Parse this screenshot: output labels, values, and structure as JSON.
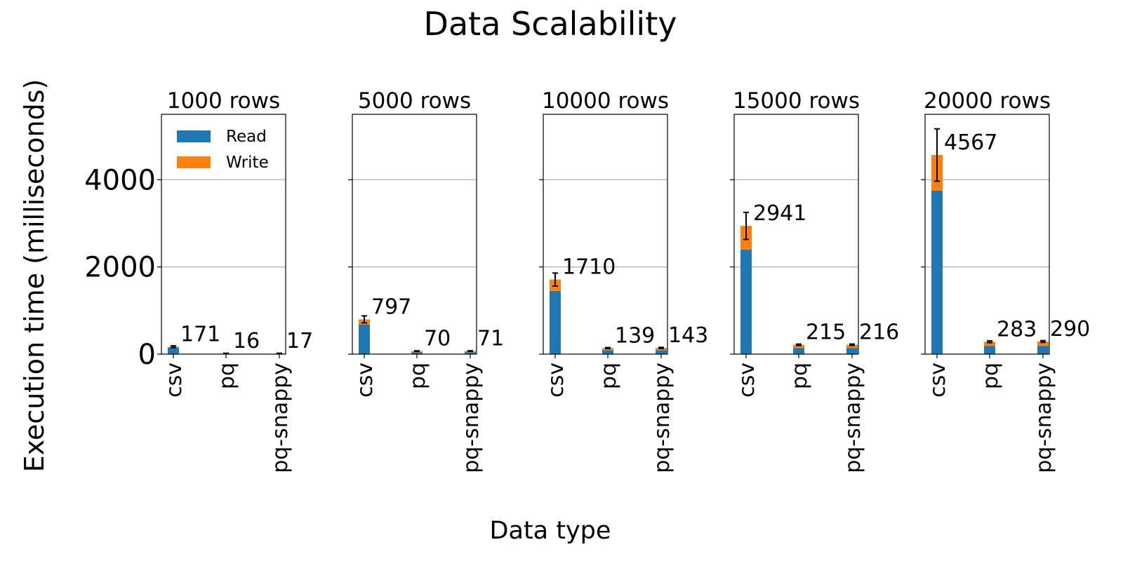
{
  "chart_data": {
    "type": "bar",
    "stacked": true,
    "title": "Data Scalability",
    "xlabel": "Data type",
    "ylabel": "Execution time (milliseconds)",
    "ylim": [
      0,
      5500
    ],
    "yticks": [
      0,
      2000,
      4000
    ],
    "y_grid": true,
    "legend": {
      "placement": "top-left",
      "entries": [
        "Read",
        "Write"
      ]
    },
    "colors": {
      "Read": "#1f77b4",
      "Write": "#ff7f0e"
    },
    "categories": [
      "csv",
      "pq",
      "pq-snappy"
    ],
    "panels": [
      {
        "title": "1000 rows",
        "series": [
          {
            "name": "Read",
            "values": [
              150,
              10,
              10
            ]
          },
          {
            "name": "Write",
            "values": [
              21,
              6,
              7
            ]
          }
        ],
        "totals": [
          171,
          16,
          17
        ],
        "labels": [
          "171",
          "16",
          "17"
        ],
        "error": [
          20,
          4,
          4
        ]
      },
      {
        "title": "5000 rows",
        "series": [
          {
            "name": "Read",
            "values": [
              680,
              45,
              46
            ]
          },
          {
            "name": "Write",
            "values": [
              117,
              25,
              25
            ]
          }
        ],
        "totals": [
          797,
          70,
          71
        ],
        "labels": [
          "797",
          "70",
          "71"
        ],
        "error": [
          80,
          6,
          6
        ]
      },
      {
        "title": "10000 rows",
        "series": [
          {
            "name": "Read",
            "values": [
              1450,
              90,
              92
            ]
          },
          {
            "name": "Write",
            "values": [
              260,
              49,
              51
            ]
          }
        ],
        "totals": [
          1710,
          139,
          143
        ],
        "labels": [
          "1710",
          "139",
          "143"
        ],
        "error": [
          150,
          12,
          12
        ]
      },
      {
        "title": "15000 rows",
        "series": [
          {
            "name": "Read",
            "values": [
              2400,
              140,
              142
            ]
          },
          {
            "name": "Write",
            "values": [
              541,
              75,
              74
            ]
          }
        ],
        "totals": [
          2941,
          215,
          216
        ],
        "labels": [
          "2941",
          "215",
          "216"
        ],
        "error": [
          310,
          15,
          15
        ]
      },
      {
        "title": "20000 rows",
        "series": [
          {
            "name": "Read",
            "values": [
              3750,
              185,
              190
            ]
          },
          {
            "name": "Write",
            "values": [
              817,
              98,
              100
            ]
          }
        ],
        "totals": [
          4567,
          283,
          290
        ],
        "labels": [
          "4567",
          "283",
          "290"
        ],
        "error": [
          600,
          20,
          20
        ]
      }
    ]
  }
}
